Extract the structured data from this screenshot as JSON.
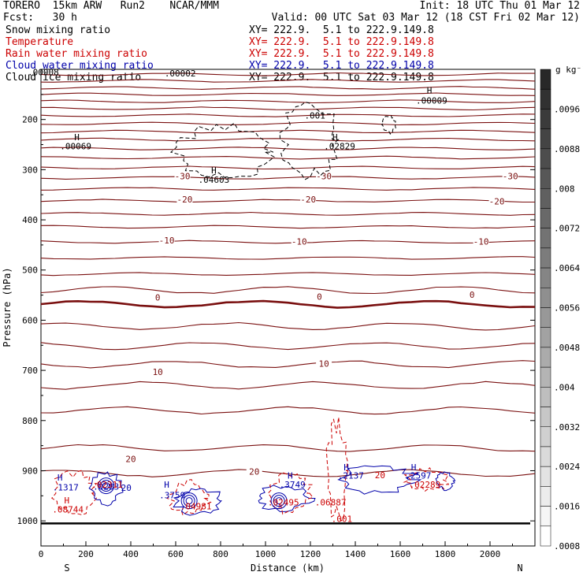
{
  "header": {
    "model": "TORERO  15km ARW   Run2    NCAR/MMM",
    "init": "Init: 18 UTC Thu 01 Mar 12",
    "fcst": "Fcst:   30 h",
    "valid": "Valid: 00 UTC Sat 03 Mar 12 (18 CST Fri 02 Mar 12)",
    "fields": [
      {
        "name": "Snow mixing ratio",
        "xy": "XY= 222.9.  5.1 to 222.9.149.8",
        "color": "#000000"
      },
      {
        "name": "Temperature",
        "xy": "XY= 222.9.  5.1 to 222.9.149.8",
        "color": "#cc0000"
      },
      {
        "name": "Rain water mixing ratio",
        "xy": "XY= 222.9.  5.1 to 222.9.149.8",
        "color": "#cc0000"
      },
      {
        "name": "Cloud water mixing ratio",
        "xy": "XY= 222.9.  5.1 to 222.9.149.8",
        "color": "#0000aa"
      },
      {
        "name": "Cloud ice mixing ratio",
        "xy": "XY= 222.9.  5.1 to 222.9.149.8",
        "color": "#000000"
      }
    ]
  },
  "chart_data": {
    "type": "cross-section contour",
    "xlabel": "Distance (km)",
    "ylabel": "Pressure (hPa)",
    "x_ticks": [
      0,
      200,
      400,
      600,
      800,
      1000,
      1200,
      1400,
      1600,
      1800,
      2000
    ],
    "y_ticks": [
      200,
      300,
      400,
      500,
      600,
      700,
      800,
      900,
      1000
    ],
    "xlim": [
      0,
      2200
    ],
    "ylim": [
      100,
      1050
    ],
    "left_end": "S",
    "right_end": "N",
    "temperature_contours": [
      {
        "value": -30,
        "label": "-30"
      },
      {
        "value": -20,
        "label": "-20"
      },
      {
        "value": -10,
        "label": "-10"
      },
      {
        "value": 0,
        "label": "0"
      },
      {
        "value": 10,
        "label": "10"
      },
      {
        "value": 20,
        "label": "20"
      }
    ],
    "annotations": [
      {
        "text": ".00008",
        "color": "#000000",
        "x": 10,
        "p": 112
      },
      {
        "text": ".00002",
        "color": "#000000",
        "x": 620,
        "p": 114
      },
      {
        "text": "H",
        "color": "#000000",
        "x": 1730,
        "p": 148
      },
      {
        "text": ".00009",
        "color": "#000000",
        "x": 1740,
        "p": 168
      },
      {
        "text": ".001",
        "color": "#000000",
        "x": 1220,
        "p": 198
      },
      {
        "text": "H",
        "color": "#000000",
        "x": 160,
        "p": 241
      },
      {
        "text": ".00069",
        "color": "#000000",
        "x": 155,
        "p": 259
      },
      {
        "text": "H",
        "color": "#000000",
        "x": 1310,
        "p": 241
      },
      {
        "text": ".02829",
        "color": "#000000",
        "x": 1330,
        "p": 259
      },
      {
        "text": "H",
        "color": "#000000",
        "x": 770,
        "p": 307
      },
      {
        "text": ".04603",
        "color": "#000000",
        "x": 770,
        "p": 326
      },
      {
        "text": "H",
        "color": "#0000aa",
        "x": 85,
        "p": 920
      },
      {
        "text": ".1317",
        "color": "#0000aa",
        "x": 110,
        "p": 939
      },
      {
        "text": ".0283",
        "color": "#0000aa",
        "x": 290,
        "p": 938
      },
      {
        "text": "20",
        "color": "#0000aa",
        "x": 380,
        "p": 940
      },
      {
        "text": "H",
        "color": "#0000aa",
        "x": 560,
        "p": 934
      },
      {
        "text": ".3759",
        "color": "#0000aa",
        "x": 585,
        "p": 955
      },
      {
        "text": "H",
        "color": "#0000aa",
        "x": 1110,
        "p": 916
      },
      {
        "text": ".3749",
        "color": "#0000aa",
        "x": 1120,
        "p": 934
      },
      {
        "text": "H",
        "color": "#0000aa",
        "x": 1360,
        "p": 899
      },
      {
        "text": ".2137",
        "color": "#0000aa",
        "x": 1380,
        "p": 916
      },
      {
        "text": "H",
        "color": "#0000aa",
        "x": 1660,
        "p": 899
      },
      {
        "text": ".2597",
        "color": "#0000aa",
        "x": 1680,
        "p": 916
      },
      {
        "text": "H",
        "color": "#cc0000",
        "x": 115,
        "p": 965
      },
      {
        "text": ".08744",
        "color": "#cc0000",
        "x": 120,
        "p": 983
      },
      {
        "text": ".02311",
        "color": "#cc0000",
        "x": 295,
        "p": 934
      },
      {
        "text": ".04981",
        "color": "#cc0000",
        "x": 690,
        "p": 977
      },
      {
        "text": ".02495",
        "color": "#cc0000",
        "x": 1080,
        "p": 969
      },
      {
        "text": ".06887",
        "color": "#cc0000",
        "x": 1290,
        "p": 969
      },
      {
        "text": ".001",
        "color": "#cc0000",
        "x": 1340,
        "p": 1002
      },
      {
        "text": "20",
        "color": "#cc0000",
        "x": 1510,
        "p": 915
      },
      {
        "text": ".02289",
        "color": "#cc0000",
        "x": 1710,
        "p": 934
      }
    ]
  },
  "colorbar": {
    "units": "g kg⁻¹",
    "labels": [
      ".0096",
      ".0088",
      ".008",
      ".0072",
      ".0064",
      ".0056",
      ".0048",
      ".004",
      ".0032",
      ".0024",
      ".0016",
      ".0008"
    ]
  }
}
